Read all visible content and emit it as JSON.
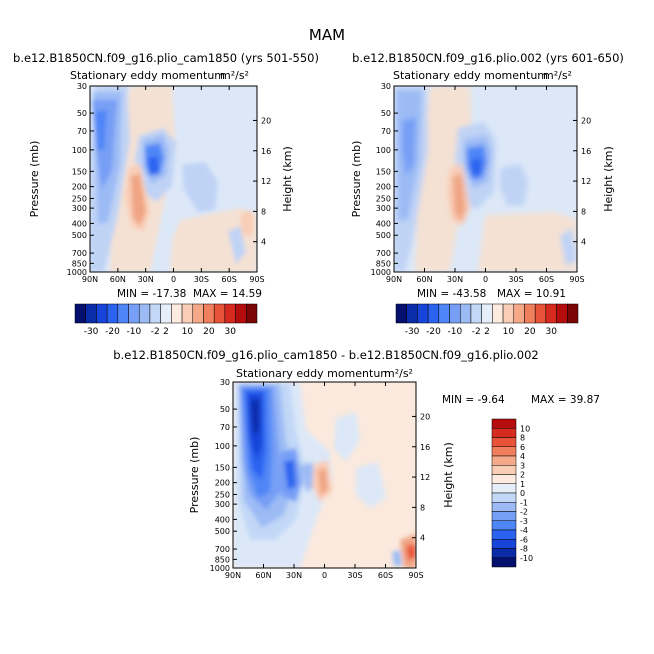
{
  "figure_title": "MAM",
  "panels": [
    {
      "case": "b.e12.B1850CN.f09_g16.plio_cam1850 (yrs 501-550)",
      "subtitle": "Stationary eddy momentum",
      "units": "m²/s²",
      "min_label": "MIN = -17.38",
      "max_label": "MAX = 14.59"
    },
    {
      "case": "b.e12.B1850CN.f09_g16.plio.002 (yrs 601-650)",
      "subtitle": "Stationary eddy momentum",
      "units": "m²/s²",
      "min_label": "MIN = -43.58",
      "max_label": "MAX = 10.91"
    },
    {
      "case": "b.e12.B1850CN.f09_g16.plio_cam1850 - b.e12.B1850CN.f09_g16.plio.002",
      "subtitle": "Stationary eddy momentum",
      "units": "m²/s²",
      "min_label": "MIN = -9.64",
      "max_label": "MAX = 39.87"
    }
  ],
  "chart_data": {
    "type": "heatmap",
    "x_tick_labels": [
      "90N",
      "60N",
      "30N",
      "0",
      "30S",
      "60S",
      "90S"
    ],
    "pressure_levels_mb": [
      30,
      50,
      70,
      100,
      150,
      200,
      250,
      300,
      400,
      500,
      700,
      850,
      1000
    ],
    "pressure_tick_labels": [
      "30",
      "50",
      "70",
      "100",
      "150",
      "200",
      "250",
      "300",
      "400",
      "500",
      "700",
      "850",
      "1000"
    ],
    "height_ticks_km": [
      4,
      8,
      12,
      16,
      20
    ],
    "height_tick_labels": [
      "4",
      "8",
      "12",
      "16",
      "20"
    ],
    "ylabel_left": "Pressure (mb)",
    "ylabel_right": "Height (km)",
    "colorbar_top": {
      "labels": [
        "-30",
        "-20",
        "-10",
        "-2",
        "2",
        "10",
        "20",
        "30"
      ],
      "colors": [
        "#05106e",
        "#0a2ca8",
        "#1745d9",
        "#2b63f0",
        "#4f86f7",
        "#779ff5",
        "#9cbbf5",
        "#c3d8f7",
        "#e6eff9",
        "#fdebe0",
        "#f9cdb6",
        "#f5a988",
        "#f07f5e",
        "#e8543a",
        "#d62a1e",
        "#b50d0d",
        "#7a0606"
      ]
    },
    "colorbar_diff": {
      "labels": [
        "10",
        "8",
        "6",
        "4",
        "3",
        "2",
        "1",
        "0",
        "-1",
        "-2",
        "-3",
        "-4",
        "-6",
        "-8",
        "-10"
      ],
      "colors": [
        "#b50d0d",
        "#d62a1e",
        "#e8543a",
        "#f07f5e",
        "#f5a988",
        "#f9cdb6",
        "#fdebe0",
        "#e6eff9",
        "#c3d8f7",
        "#9cbbf5",
        "#779ff5",
        "#4f86f7",
        "#2b63f0",
        "#1745d9",
        "#0a2ca8",
        "#05106e"
      ]
    }
  }
}
